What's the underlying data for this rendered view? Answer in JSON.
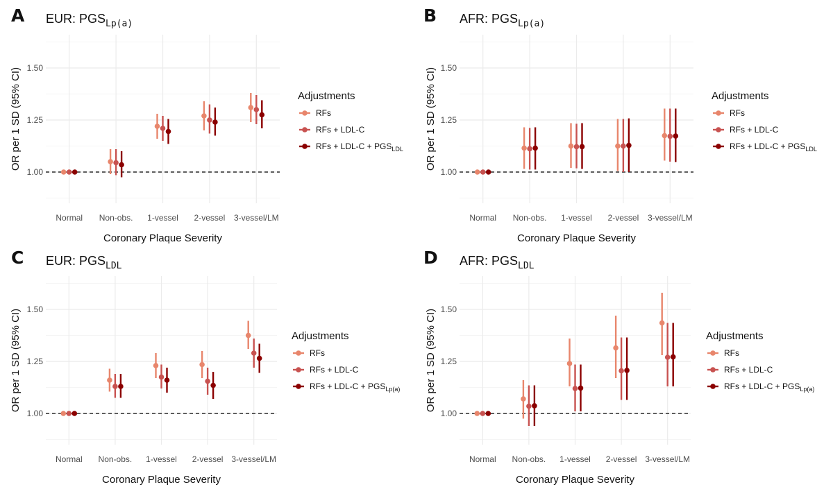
{
  "colors": {
    "rfs": "#e8866c",
    "ldl": "#c85250",
    "full": "#8b0000",
    "grid": "#ebebeb",
    "refline": "#000000"
  },
  "common": {
    "xlabel": "Coronary Plaque Severity",
    "ylabel": "OR per 1 SD (95% CI)",
    "categories": [
      "Normal",
      "Non-obs.",
      "1-vessel",
      "2-vessel",
      "3-vessel/LM"
    ],
    "yticks": [
      "1.00",
      "1.25",
      "1.50"
    ],
    "legend_title": "Adjustments"
  },
  "chart_data": [
    {
      "panel": "A",
      "type": "scatter",
      "title_main": "EUR: PGS",
      "title_sub": "Lp(a)",
      "xlabel": "Coronary Plaque Severity",
      "ylabel": "OR per 1 SD (95% CI)",
      "ylim": [
        0.85,
        1.66
      ],
      "reference_line": 1.0,
      "legend_title": "Adjustments",
      "legend": [
        {
          "label": "RFs"
        },
        {
          "label": "RFs + LDL-C"
        },
        {
          "label": "RFs + LDL-C + PGS",
          "sub": "LDL"
        }
      ],
      "categories": [
        "Normal",
        "Non-obs.",
        "1-vessel",
        "2-vessel",
        "3-vessel/LM"
      ],
      "series": [
        {
          "name": "RFs",
          "color_key": "rfs",
          "points": [
            {
              "or": 1.0,
              "lo": 1.0,
              "hi": 1.0
            },
            {
              "or": 1.05,
              "lo": 0.99,
              "hi": 1.11
            },
            {
              "or": 1.22,
              "lo": 1.16,
              "hi": 1.28
            },
            {
              "or": 1.27,
              "lo": 1.2,
              "hi": 1.34
            },
            {
              "or": 1.31,
              "lo": 1.24,
              "hi": 1.38
            }
          ]
        },
        {
          "name": "RFs + LDL-C",
          "color_key": "ldl",
          "points": [
            {
              "or": 1.0,
              "lo": 1.0,
              "hi": 1.0
            },
            {
              "or": 1.045,
              "lo": 0.985,
              "hi": 1.11
            },
            {
              "or": 1.21,
              "lo": 1.15,
              "hi": 1.27
            },
            {
              "or": 1.25,
              "lo": 1.185,
              "hi": 1.325
            },
            {
              "or": 1.3,
              "lo": 1.23,
              "hi": 1.37
            }
          ]
        },
        {
          "name": "RFs + LDL-C + PGS LDL",
          "color_key": "full",
          "points": [
            {
              "or": 1.0,
              "lo": 1.0,
              "hi": 1.0
            },
            {
              "or": 1.035,
              "lo": 0.975,
              "hi": 1.1
            },
            {
              "or": 1.195,
              "lo": 1.135,
              "hi": 1.255
            },
            {
              "or": 1.24,
              "lo": 1.175,
              "hi": 1.31
            },
            {
              "or": 1.275,
              "lo": 1.21,
              "hi": 1.345
            }
          ]
        }
      ]
    },
    {
      "panel": "B",
      "type": "scatter",
      "title_main": "AFR: PGS",
      "title_sub": "Lp(a)",
      "xlabel": "Coronary Plaque Severity",
      "ylabel": "OR per 1 SD (95% CI)",
      "ylim": [
        0.85,
        1.66
      ],
      "reference_line": 1.0,
      "legend_title": "Adjustments",
      "legend": [
        {
          "label": "RFs"
        },
        {
          "label": "RFs + LDL-C"
        },
        {
          "label": "RFs + LDL-C + PGS",
          "sub": "LDL"
        }
      ],
      "categories": [
        "Normal",
        "Non-obs.",
        "1-vessel",
        "2-vessel",
        "3-vessel/LM"
      ],
      "series": [
        {
          "name": "RFs",
          "color_key": "rfs",
          "points": [
            {
              "or": 1.0,
              "lo": 1.0,
              "hi": 1.0
            },
            {
              "or": 1.115,
              "lo": 1.015,
              "hi": 1.215
            },
            {
              "or": 1.125,
              "lo": 1.02,
              "hi": 1.235
            },
            {
              "or": 1.125,
              "lo": 1.005,
              "hi": 1.255
            },
            {
              "or": 1.175,
              "lo": 1.055,
              "hi": 1.305
            }
          ]
        },
        {
          "name": "RFs + LDL-C",
          "color_key": "ldl",
          "points": [
            {
              "or": 1.0,
              "lo": 1.0,
              "hi": 1.0
            },
            {
              "or": 1.112,
              "lo": 1.012,
              "hi": 1.212
            },
            {
              "or": 1.122,
              "lo": 1.018,
              "hi": 1.232
            },
            {
              "or": 1.125,
              "lo": 1.0,
              "hi": 1.255
            },
            {
              "or": 1.172,
              "lo": 1.05,
              "hi": 1.305
            }
          ]
        },
        {
          "name": "RFs + LDL-C + PGS LDL",
          "color_key": "full",
          "points": [
            {
              "or": 1.0,
              "lo": 1.0,
              "hi": 1.0
            },
            {
              "or": 1.115,
              "lo": 1.012,
              "hi": 1.215
            },
            {
              "or": 1.122,
              "lo": 1.015,
              "hi": 1.235
            },
            {
              "or": 1.128,
              "lo": 1.0,
              "hi": 1.258
            },
            {
              "or": 1.173,
              "lo": 1.048,
              "hi": 1.305
            }
          ]
        }
      ]
    },
    {
      "panel": "C",
      "type": "scatter",
      "title_main": "EUR: PGS",
      "title_sub": "LDL",
      "xlabel": "Coronary Plaque Severity",
      "ylabel": "OR per 1 SD (95% CI)",
      "ylim": [
        0.85,
        1.66
      ],
      "reference_line": 1.0,
      "legend_title": "Adjustments",
      "legend": [
        {
          "label": "RFs"
        },
        {
          "label": "RFs + LDL-C"
        },
        {
          "label": "RFs + LDL-C + PGS",
          "sub": "Lp(a)"
        }
      ],
      "categories": [
        "Normal",
        "Non-obs.",
        "1-vessel",
        "2-vessel",
        "3-vessel/LM"
      ],
      "series": [
        {
          "name": "RFs",
          "color_key": "rfs",
          "points": [
            {
              "or": 1.0,
              "lo": 1.0,
              "hi": 1.0
            },
            {
              "or": 1.16,
              "lo": 1.105,
              "hi": 1.215
            },
            {
              "or": 1.23,
              "lo": 1.17,
              "hi": 1.29
            },
            {
              "or": 1.235,
              "lo": 1.17,
              "hi": 1.3
            },
            {
              "or": 1.375,
              "lo": 1.31,
              "hi": 1.445
            }
          ]
        },
        {
          "name": "RFs + LDL-C",
          "color_key": "ldl",
          "points": [
            {
              "or": 1.0,
              "lo": 1.0,
              "hi": 1.0
            },
            {
              "or": 1.13,
              "lo": 1.075,
              "hi": 1.19
            },
            {
              "or": 1.175,
              "lo": 1.12,
              "hi": 1.235
            },
            {
              "or": 1.155,
              "lo": 1.09,
              "hi": 1.22
            },
            {
              "or": 1.29,
              "lo": 1.22,
              "hi": 1.36
            }
          ]
        },
        {
          "name": "RFs + LDL-C + PGS Lp(a)",
          "color_key": "full",
          "points": [
            {
              "or": 1.0,
              "lo": 1.0,
              "hi": 1.0
            },
            {
              "or": 1.13,
              "lo": 1.075,
              "hi": 1.19
            },
            {
              "or": 1.16,
              "lo": 1.1,
              "hi": 1.22
            },
            {
              "or": 1.135,
              "lo": 1.07,
              "hi": 1.2
            },
            {
              "or": 1.265,
              "lo": 1.195,
              "hi": 1.335
            }
          ]
        }
      ]
    },
    {
      "panel": "D",
      "type": "scatter",
      "title_main": "AFR: PGS",
      "title_sub": "LDL",
      "xlabel": "Coronary Plaque Severity",
      "ylabel": "OR per 1 SD (95% CI)",
      "ylim": [
        0.85,
        1.66
      ],
      "reference_line": 1.0,
      "legend_title": "Adjustments",
      "legend": [
        {
          "label": "RFs"
        },
        {
          "label": "RFs + LDL-C"
        },
        {
          "label": "RFs + LDL-C + PGS",
          "sub": "Lp(a)"
        }
      ],
      "categories": [
        "Normal",
        "Non-obs.",
        "1-vessel",
        "2-vessel",
        "3-vessel/LM"
      ],
      "series": [
        {
          "name": "RFs",
          "color_key": "rfs",
          "points": [
            {
              "or": 1.0,
              "lo": 1.0,
              "hi": 1.0
            },
            {
              "or": 1.07,
              "lo": 0.975,
              "hi": 1.16
            },
            {
              "or": 1.24,
              "lo": 1.13,
              "hi": 1.36
            },
            {
              "or": 1.315,
              "lo": 1.17,
              "hi": 1.47
            },
            {
              "or": 1.435,
              "lo": 1.28,
              "hi": 1.58
            }
          ]
        },
        {
          "name": "RFs + LDL-C",
          "color_key": "ldl",
          "points": [
            {
              "or": 1.0,
              "lo": 1.0,
              "hi": 1.0
            },
            {
              "or": 1.035,
              "lo": 0.94,
              "hi": 1.135
            },
            {
              "or": 1.12,
              "lo": 1.01,
              "hi": 1.235
            },
            {
              "or": 1.205,
              "lo": 1.065,
              "hi": 1.365
            },
            {
              "or": 1.27,
              "lo": 1.13,
              "hi": 1.435
            }
          ]
        },
        {
          "name": "RFs + LDL-C + PGS Lp(a)",
          "color_key": "full",
          "points": [
            {
              "or": 1.0,
              "lo": 1.0,
              "hi": 1.0
            },
            {
              "or": 1.037,
              "lo": 0.94,
              "hi": 1.135
            },
            {
              "or": 1.122,
              "lo": 1.01,
              "hi": 1.235
            },
            {
              "or": 1.207,
              "lo": 1.065,
              "hi": 1.365
            },
            {
              "or": 1.272,
              "lo": 1.13,
              "hi": 1.435
            }
          ]
        }
      ]
    }
  ]
}
